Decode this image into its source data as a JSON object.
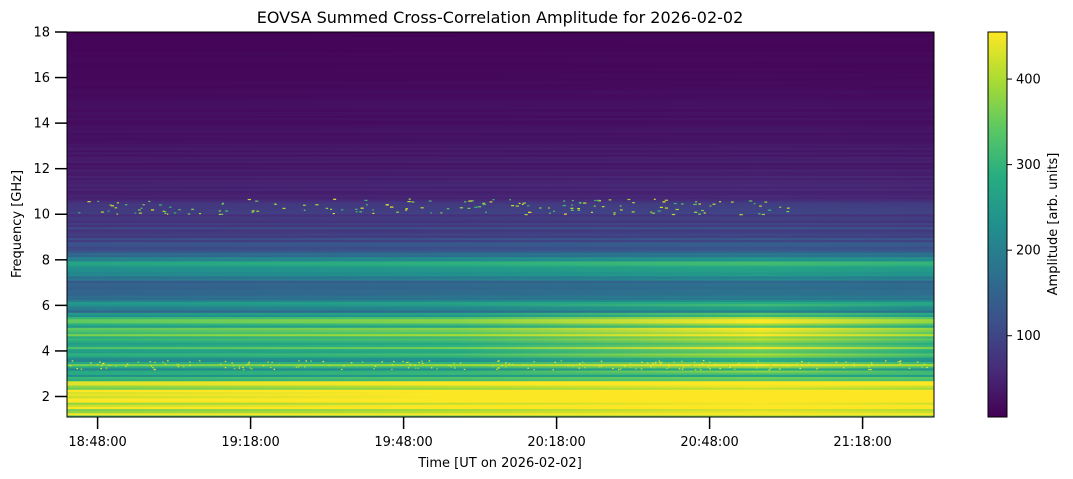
{
  "chart_data": {
    "type": "heatmap",
    "title": "EOVSA Summed Cross-Correlation Amplitude for 2026-02-02",
    "xlabel": "Time [UT on 2026-02-02]",
    "ylabel": "Frequency [GHz]",
    "colorbar_label": "Amplitude [arb. units]",
    "colormap": "viridis",
    "colormap_stops": [
      "#440154",
      "#472c7a",
      "#3b518b",
      "#2c718e",
      "#21908d",
      "#27ad81",
      "#5cc863",
      "#aadc32",
      "#fde725"
    ],
    "x_tick_labels": [
      "18:48:00",
      "19:18:00",
      "19:48:00",
      "20:18:00",
      "20:48:00",
      "21:18:00"
    ],
    "x_tick_minutes": [
      1128,
      1158,
      1188,
      1218,
      1248,
      1278
    ],
    "xlim_minutes": [
      1122,
      1292
    ],
    "xlim_labels": [
      "18:42:00",
      "21:32:00"
    ],
    "y_ticks": [
      2,
      4,
      6,
      8,
      10,
      12,
      14,
      16,
      18
    ],
    "ylim": [
      1.1,
      18
    ],
    "colorbar_ticks": [
      100,
      200,
      300,
      400
    ],
    "colorbar_range": [
      5,
      455
    ],
    "spectrum_profile": [
      {
        "f": 1.1,
        "amp": 440
      },
      {
        "f": 1.2,
        "amp": 455
      },
      {
        "f": 2.0,
        "amp": 445
      },
      {
        "f": 2.7,
        "amp": 430
      },
      {
        "f": 2.9,
        "amp": 250
      },
      {
        "f": 3.2,
        "amp": 270
      },
      {
        "f": 3.4,
        "amp": 330
      },
      {
        "f": 3.6,
        "amp": 210
      },
      {
        "f": 4.0,
        "amp": 300
      },
      {
        "f": 4.5,
        "amp": 340
      },
      {
        "f": 5.0,
        "amp": 320
      },
      {
        "f": 5.4,
        "amp": 380
      },
      {
        "f": 5.7,
        "amp": 200
      },
      {
        "f": 6.0,
        "amp": 240
      },
      {
        "f": 6.5,
        "amp": 180
      },
      {
        "f": 7.0,
        "amp": 150
      },
      {
        "f": 7.8,
        "amp": 270
      },
      {
        "f": 8.5,
        "amp": 120
      },
      {
        "f": 9.5,
        "amp": 90
      },
      {
        "f": 10.5,
        "amp": 70
      },
      {
        "f": 11.0,
        "amp": 55
      },
      {
        "f": 12.0,
        "amp": 40
      },
      {
        "f": 14.0,
        "amp": 25
      },
      {
        "f": 16.0,
        "amp": 15
      },
      {
        "f": 18.0,
        "amp": 10
      }
    ]
  }
}
